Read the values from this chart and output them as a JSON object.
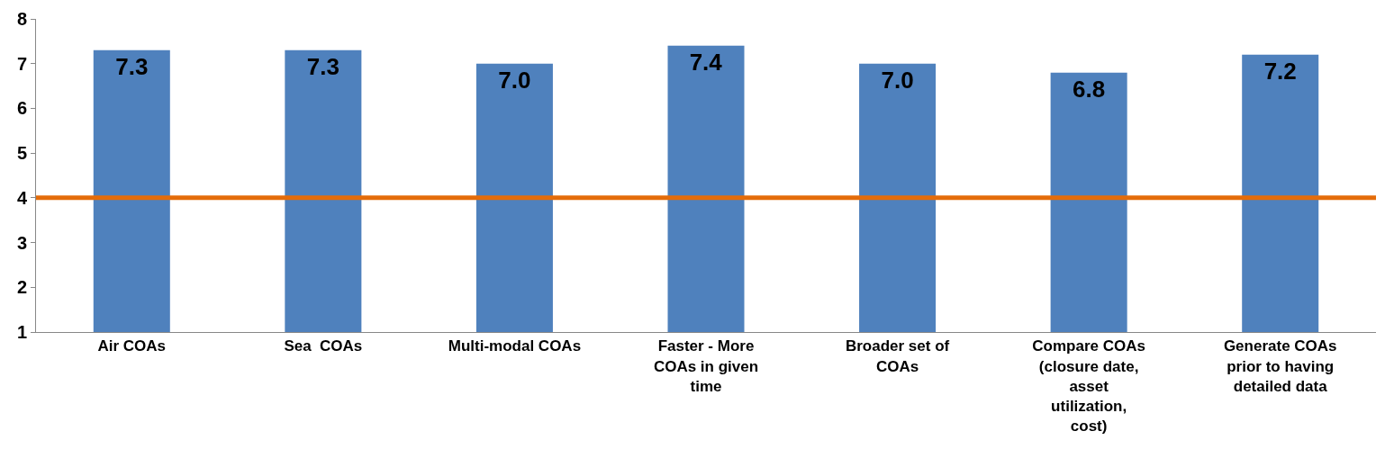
{
  "chart_data": {
    "type": "bar",
    "categories": [
      "Air COAs",
      "Sea  COAs",
      "Multi-modal COAs",
      "Faster - More COAs in given time",
      "Broader set of COAs",
      "Compare COAs (closure date, asset utilization, cost)",
      "Generate COAs prior to having detailed data"
    ],
    "values": [
      7.3,
      7.3,
      7.0,
      7.4,
      7.0,
      6.8,
      7.2
    ],
    "value_labels": [
      "7.3",
      "7.3",
      "7.0",
      "7.4",
      "7.0",
      "6.8",
      "7.2"
    ],
    "color": "#4f81bd",
    "ylim": [
      1,
      8
    ],
    "yticks": [
      1,
      2,
      3,
      4,
      5,
      6,
      7,
      8
    ],
    "ref_lines": [
      {
        "axis": "y",
        "value": 4,
        "color": "#e46c0a"
      }
    ]
  }
}
